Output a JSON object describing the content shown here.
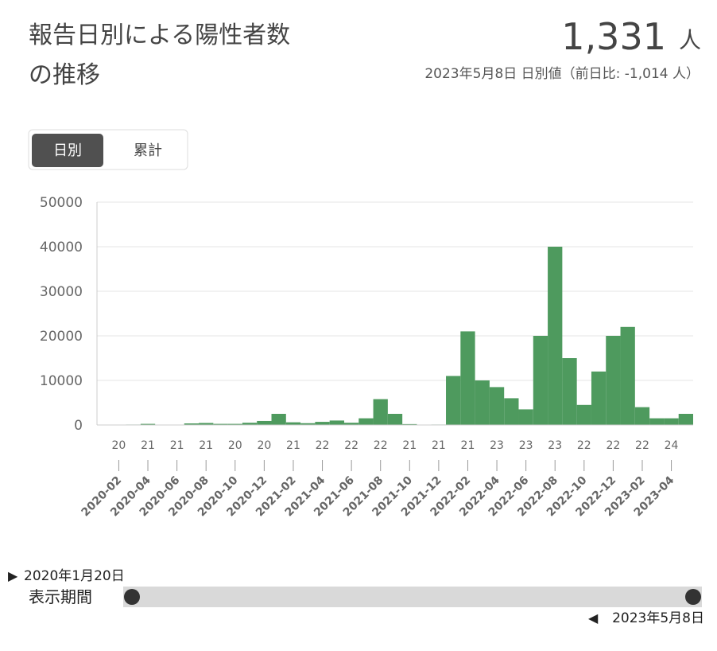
{
  "header": {
    "title": "報告日別による陽性者数の推移",
    "value": "1,331",
    "unit": "人",
    "subtitle": "2023年5月8日 日別値（前日比: -1,014 人）"
  },
  "tabs": [
    "日別",
    "累計"
  ],
  "chart_data": {
    "type": "bar",
    "color": "#4e9a5e",
    "x": [
      "2020-01",
      "2020-02",
      "2020-03",
      "2020-04",
      "2020-05",
      "2020-06",
      "2020-07",
      "2020-08",
      "2020-09",
      "2020-10",
      "2020-11",
      "2020-12",
      "2021-01",
      "2021-02",
      "2021-03",
      "2021-04",
      "2021-05",
      "2021-06",
      "2021-07",
      "2021-08",
      "2021-09",
      "2021-10",
      "2021-11",
      "2021-12",
      "2022-01",
      "2022-02",
      "2022-03",
      "2022-04",
      "2022-05",
      "2022-06",
      "2022-07",
      "2022-08",
      "2022-09",
      "2022-10",
      "2022-11",
      "2022-12",
      "2023-01",
      "2023-02",
      "2023-03",
      "2023-04",
      "2023-05"
    ],
    "values": [
      0,
      10,
      100,
      250,
      50,
      50,
      350,
      450,
      250,
      250,
      500,
      900,
      2500,
      600,
      400,
      700,
      1000,
      500,
      1500,
      5800,
      2500,
      200,
      50,
      100,
      11000,
      21000,
      10000,
      8500,
      6000,
      3500,
      20000,
      40000,
      15000,
      4500,
      12000,
      20000,
      22000,
      4000,
      1500,
      1500,
      2500
    ],
    "ylim": [
      0,
      50000
    ],
    "yticks": [
      0,
      10000,
      20000,
      30000,
      40000,
      50000
    ],
    "grid": true,
    "xticks": [
      "2020-02",
      "2020-04",
      "2020-06",
      "2020-08",
      "2020-10",
      "2020-12",
      "2021-02",
      "2021-04",
      "2021-06",
      "2021-08",
      "2021-10",
      "2021-12",
      "2022-02",
      "2022-04",
      "2022-06",
      "2022-08",
      "2022-10",
      "2022-12",
      "2023-02",
      "2023-04"
    ],
    "x_day_labels": [
      "20",
      "21",
      "21",
      "21",
      "20",
      "20",
      "21",
      "22",
      "22",
      "22",
      "21",
      "21",
      "21",
      "23",
      "23",
      "23",
      "22",
      "22",
      "22",
      "24"
    ]
  },
  "range": {
    "label": "表示期間",
    "start": "2020年1月20日",
    "end": "2023年5月8日"
  }
}
